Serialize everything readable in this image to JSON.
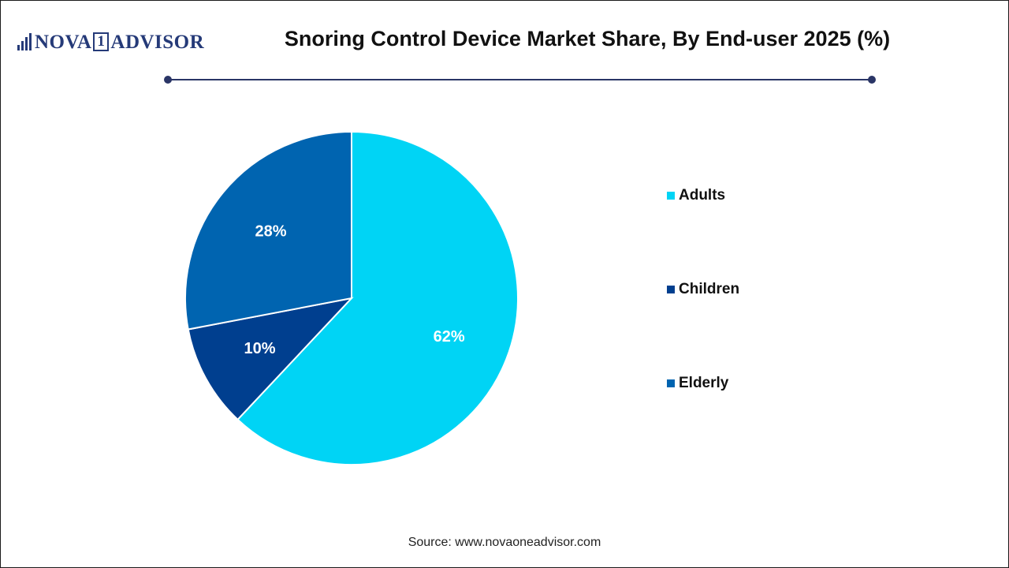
{
  "header": {
    "logo_left": "NOVA",
    "logo_one": "1",
    "logo_right": "ADVISOR"
  },
  "chart_data": {
    "type": "pie",
    "title": "Snoring Control Device Market Share, By End-user 2025 (%)",
    "slices": [
      {
        "label": "Adults",
        "value": 62,
        "display": "62%",
        "color": "#00d4f5"
      },
      {
        "label": "Children",
        "value": 10,
        "display": "10%",
        "color": "#003f8f"
      },
      {
        "label": "Elderly",
        "value": 28,
        "display": "28%",
        "color": "#0064b0"
      }
    ],
    "legend_position": "right"
  },
  "source": "Source: www.novaoneadvisor.com",
  "colors": {
    "brand": "#253a78",
    "rule": "#2a3566"
  }
}
